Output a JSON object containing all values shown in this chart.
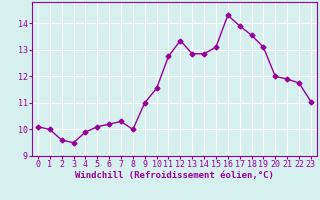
{
  "x": [
    0,
    1,
    2,
    3,
    4,
    5,
    6,
    7,
    8,
    9,
    10,
    11,
    12,
    13,
    14,
    15,
    16,
    17,
    18,
    19,
    20,
    21,
    22,
    23
  ],
  "y": [
    10.1,
    10.0,
    9.6,
    9.5,
    9.9,
    10.1,
    10.2,
    10.3,
    10.0,
    11.0,
    11.55,
    12.75,
    13.35,
    12.85,
    12.85,
    13.1,
    14.3,
    13.9,
    13.55,
    13.1,
    12.0,
    11.9,
    11.75,
    11.05
  ],
  "line_color": "#990099",
  "marker": "D",
  "marker_size": 2.5,
  "line_width": 1.0,
  "bg_color": "#d6f0f0",
  "grid_color": "#ffffff",
  "xlabel": "Windchill (Refroidissement éolien,°C)",
  "xlabel_color": "#990099",
  "tick_color": "#990099",
  "spine_color": "#990099",
  "xlim": [
    -0.5,
    23.5
  ],
  "ylim": [
    9.0,
    14.8
  ],
  "yticks": [
    9,
    10,
    11,
    12,
    13,
    14
  ],
  "xticks": [
    0,
    1,
    2,
    3,
    4,
    5,
    6,
    7,
    8,
    9,
    10,
    11,
    12,
    13,
    14,
    15,
    16,
    17,
    18,
    19,
    20,
    21,
    22,
    23
  ],
  "label_fontsize": 6.5,
  "tick_fontsize": 6.0
}
